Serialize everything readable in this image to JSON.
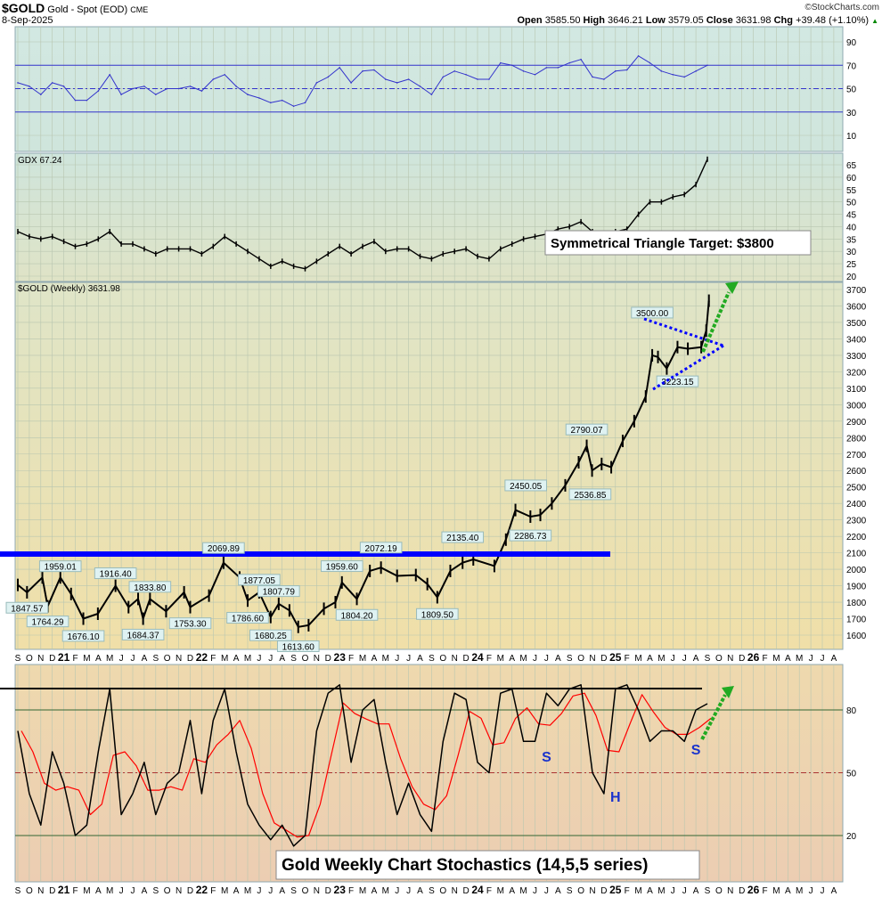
{
  "header": {
    "symbol": "$GOLD",
    "name": "Gold - Spot (EOD)",
    "exchange": "CME",
    "date": "8-Sep-2025",
    "watermark": "©StockCharts.com",
    "open_label": "Open",
    "open": "3585.50",
    "high_label": "High",
    "high": "3646.21",
    "low_label": "Low",
    "low": "3579.05",
    "close_label": "Close",
    "close": "3631.98",
    "chg_label": "Chg",
    "chg": "+39.48 (+1.10%)",
    "up_icon": "triangle-up-icon"
  },
  "colors": {
    "price": "#000000",
    "rsi": "#3333cc",
    "gdx": "#000000",
    "stoch_k": "#000000",
    "stoch_d": "#ff0000",
    "support": "#0000ff",
    "triangle": "#0000ff",
    "arrow": "#22aa22"
  },
  "chart_data": [
    {
      "type": "line",
      "panel": "rsi",
      "yticks": [
        "90",
        "70",
        "50",
        "30",
        "10"
      ],
      "ylim": [
        0,
        100
      ],
      "levels": [
        70,
        50,
        30
      ],
      "start": "2020-09",
      "values": [
        55,
        52,
        45,
        55,
        52,
        40,
        40,
        48,
        62,
        45,
        50,
        52,
        45,
        50,
        50,
        52,
        48,
        58,
        62,
        52,
        45,
        42,
        38,
        40,
        35,
        38,
        55,
        60,
        68,
        55,
        65,
        66,
        58,
        55,
        58,
        52,
        45,
        60,
        65,
        62,
        58,
        58,
        72,
        70,
        65,
        62,
        68,
        68,
        72,
        75,
        60,
        58,
        65,
        66,
        78,
        72,
        65,
        62,
        60,
        65,
        70
      ]
    },
    {
      "type": "line",
      "panel": "gdx",
      "legend": "GDX 67.24",
      "yticks": [
        "65",
        "60",
        "55",
        "50",
        "45",
        "40",
        "35",
        "30",
        "25",
        "20"
      ],
      "ylim": [
        18,
        70
      ],
      "start": "2020-09",
      "values": [
        38,
        36,
        35,
        36,
        34,
        32,
        33,
        35,
        38,
        33,
        33,
        31,
        29,
        31,
        31,
        31,
        29,
        32,
        36,
        33,
        30,
        27,
        24,
        26,
        24,
        23,
        26,
        29,
        32,
        29,
        32,
        34,
        30,
        31,
        31,
        28,
        27,
        29,
        30,
        31,
        28,
        27,
        31,
        33,
        35,
        36,
        37,
        39,
        40,
        42,
        38,
        36,
        38,
        39,
        45,
        50,
        50,
        52,
        53,
        57,
        67.24
      ]
    },
    {
      "type": "line",
      "panel": "price",
      "legend": "$GOLD (Weekly) 3631.98",
      "yticks": [
        "3700",
        "3600",
        "3500",
        "3400",
        "3300",
        "3200",
        "3100",
        "3000",
        "2900",
        "2800",
        "2700",
        "2600",
        "2500",
        "2400",
        "2300",
        "2200",
        "2100",
        "2000",
        "1900",
        "1800",
        "1700",
        "1600"
      ],
      "ylim": [
        1540,
        3760
      ],
      "points": [
        [
          "2020-09-01",
          1905
        ],
        [
          "2020-09-25",
          1860
        ],
        [
          "2020-11-05",
          1950
        ],
        [
          "2020-11-19",
          1775
        ],
        [
          "2020-12-22",
          1950
        ],
        [
          "2021-01-20",
          1850
        ],
        [
          "2021-02-22",
          1700
        ],
        [
          "2021-03-30",
          1730
        ],
        [
          "2021-05-16",
          1900
        ],
        [
          "2021-06-20",
          1770
        ],
        [
          "2021-07-15",
          1820
        ],
        [
          "2021-07-28",
          1700
        ],
        [
          "2021-08-16",
          1820
        ],
        [
          "2021-09-28",
          1745
        ],
        [
          "2021-11-15",
          1860
        ],
        [
          "2021-12-01",
          1770
        ],
        [
          "2022-01-20",
          1840
        ],
        [
          "2022-02-28",
          2040
        ],
        [
          "2022-04-10",
          1950
        ],
        [
          "2022-05-01",
          1810
        ],
        [
          "2022-06-01",
          1860
        ],
        [
          "2022-07-01",
          1710
        ],
        [
          "2022-07-22",
          1790
        ],
        [
          "2022-08-20",
          1750
        ],
        [
          "2022-09-13",
          1650
        ],
        [
          "2022-10-10",
          1660
        ],
        [
          "2022-11-20",
          1760
        ],
        [
          "2022-12-20",
          1800
        ],
        [
          "2023-01-07",
          1920
        ],
        [
          "2023-02-16",
          1820
        ],
        [
          "2023-03-20",
          1990
        ],
        [
          "2023-04-19",
          2010
        ],
        [
          "2023-06-01",
          1960
        ],
        [
          "2023-07-20",
          1965
        ],
        [
          "2023-08-20",
          1910
        ],
        [
          "2023-09-16",
          1830
        ],
        [
          "2023-10-20",
          1990
        ],
        [
          "2023-11-22",
          2040
        ],
        [
          "2023-12-20",
          2060
        ],
        [
          "2024-02-15",
          2020
        ],
        [
          "2024-03-15",
          2180
        ],
        [
          "2024-04-10",
          2360
        ],
        [
          "2024-05-19",
          2320
        ],
        [
          "2024-06-15",
          2330
        ],
        [
          "2024-07-15",
          2400
        ],
        [
          "2024-08-20",
          2510
        ],
        [
          "2024-09-25",
          2650
        ],
        [
          "2024-10-16",
          2750
        ],
        [
          "2024-10-30",
          2600
        ],
        [
          "2024-11-25",
          2640
        ],
        [
          "2024-12-20",
          2620
        ],
        [
          "2025-01-20",
          2780
        ],
        [
          "2025-02-20",
          2900
        ],
        [
          "2025-03-20",
          3050
        ],
        [
          "2025-04-07",
          3300
        ],
        [
          "2025-04-22",
          3290
        ],
        [
          "2025-05-15",
          3220
        ],
        [
          "2025-06-13",
          3350
        ],
        [
          "2025-07-10",
          3340
        ],
        [
          "2025-08-15",
          3350
        ],
        [
          "2025-08-28",
          3450
        ],
        [
          "2025-09-05",
          3631.98
        ]
      ],
      "labels": [
        {
          "text": "1847.57",
          "date": "2020-09-25",
          "price": 1847.57,
          "side": "below"
        },
        {
          "text": "1764.29",
          "date": "2020-11-19",
          "price": 1764.29,
          "side": "below"
        },
        {
          "text": "1959.01",
          "date": "2020-12-22",
          "price": 1959.01,
          "side": "above"
        },
        {
          "text": "1676.10",
          "date": "2021-02-22",
          "price": 1676.1,
          "side": "below"
        },
        {
          "text": "1916.40",
          "date": "2021-05-16",
          "price": 1916.4,
          "side": "above"
        },
        {
          "text": "1684.37",
          "date": "2021-07-28",
          "price": 1684.37,
          "side": "below"
        },
        {
          "text": "1833.80",
          "date": "2021-08-16",
          "price": 1833.8,
          "side": "above"
        },
        {
          "text": "1753.30",
          "date": "2021-12-01",
          "price": 1753.3,
          "side": "below"
        },
        {
          "text": "2069.89",
          "date": "2022-02-28",
          "price": 2069.89,
          "side": "above"
        },
        {
          "text": "1786.60",
          "date": "2022-05-01",
          "price": 1786.6,
          "side": "below"
        },
        {
          "text": "1877.05",
          "date": "2022-06-01",
          "price": 1877.05,
          "side": "above"
        },
        {
          "text": "1680.25",
          "date": "2022-07-01",
          "price": 1680.25,
          "side": "below"
        },
        {
          "text": "1807.79",
          "date": "2022-07-22",
          "price": 1807.79,
          "side": "above"
        },
        {
          "text": "1613.60",
          "date": "2022-09-13",
          "price": 1613.6,
          "side": "below"
        },
        {
          "text": "1959.60",
          "date": "2023-01-07",
          "price": 1959.6,
          "side": "above"
        },
        {
          "text": "1804.20",
          "date": "2023-02-16",
          "price": 1804.2,
          "side": "below"
        },
        {
          "text": "2072.19",
          "date": "2023-04-19",
          "price": 2072.19,
          "side": "above"
        },
        {
          "text": "1809.50",
          "date": "2023-09-16",
          "price": 1809.5,
          "side": "below"
        },
        {
          "text": "2135.40",
          "date": "2023-11-22",
          "price": 2135.4,
          "side": "above"
        },
        {
          "text": "2450.05",
          "date": "2024-05-07",
          "price": 2450.05,
          "side": "above"
        },
        {
          "text": "2286.73",
          "date": "2024-05-19",
          "price": 2286.73,
          "side": "below"
        },
        {
          "text": "2790.07",
          "date": "2024-10-16",
          "price": 2790.07,
          "side": "above"
        },
        {
          "text": "2536.85",
          "date": "2024-10-25",
          "price": 2536.85,
          "side": "below"
        },
        {
          "text": "3500.00",
          "date": "2025-04-07",
          "price": 3500.0,
          "side": "above"
        },
        {
          "text": "3223.15",
          "date": "2025-06-13",
          "price": 3223.15,
          "side": "below"
        }
      ],
      "annotation": "Symmetrical Triangle Target: $3800"
    },
    {
      "type": "line",
      "panel": "stochastics",
      "yticks": [
        "80",
        "50",
        "20"
      ],
      "ylim": [
        0,
        100
      ],
      "levels": [
        80,
        50,
        20
      ],
      "start": "2020-09",
      "k_values": [
        70,
        40,
        25,
        60,
        45,
        20,
        25,
        60,
        90,
        30,
        40,
        55,
        30,
        45,
        50,
        75,
        40,
        75,
        90,
        60,
        35,
        25,
        18,
        25,
        15,
        20,
        70,
        88,
        92,
        55,
        80,
        85,
        55,
        30,
        45,
        30,
        22,
        65,
        88,
        85,
        55,
        50,
        88,
        90,
        65,
        65,
        88,
        82,
        90,
        92,
        50,
        40,
        90,
        92,
        80,
        65,
        70,
        70,
        65,
        80,
        83
      ],
      "pattern_labels": [
        {
          "text": "S",
          "date": "2024-07-01"
        },
        {
          "text": "H",
          "date": "2025-01-01"
        },
        {
          "text": "S",
          "date": "2025-08-01"
        }
      ],
      "annotation": "Gold Weekly Chart Stochastics (14,5,5 series)"
    }
  ],
  "xaxis": {
    "start": "2020-09",
    "ticks": [
      "S",
      "O",
      "N",
      "D",
      "21",
      "F",
      "M",
      "A",
      "M",
      "J",
      "J",
      "A",
      "S",
      "O",
      "N",
      "D",
      "22",
      "F",
      "M",
      "A",
      "M",
      "J",
      "J",
      "A",
      "S",
      "O",
      "N",
      "D",
      "23",
      "F",
      "M",
      "A",
      "M",
      "J",
      "J",
      "A",
      "S",
      "O",
      "N",
      "D",
      "24",
      "F",
      "M",
      "A",
      "M",
      "J",
      "J",
      "A",
      "S",
      "O",
      "N",
      "D",
      "25",
      "F",
      "M",
      "A",
      "M",
      "J",
      "J",
      "A",
      "S",
      "O",
      "N",
      "D",
      "26",
      "F",
      "M",
      "A",
      "M",
      "J",
      "J",
      "A"
    ]
  }
}
